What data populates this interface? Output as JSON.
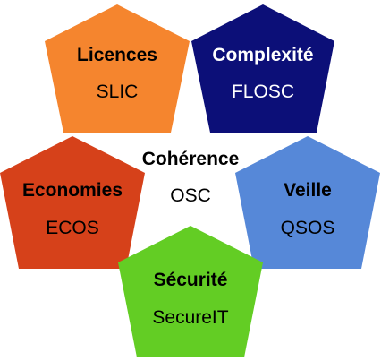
{
  "center": {
    "title": "Cohérence",
    "subtitle": "OSC"
  },
  "pentagons": [
    {
      "id": "licences",
      "title": "Licences",
      "subtitle": "SLIC",
      "fill": "#f5852e",
      "text_color": "#000000"
    },
    {
      "id": "complexite",
      "title": "Complexité",
      "subtitle": "FLOSC",
      "fill": "#0c0f78",
      "text_color": "#ffffff"
    },
    {
      "id": "economies",
      "title": "Economies",
      "subtitle": "ECOS",
      "fill": "#d6411a",
      "text_color": "#000000"
    },
    {
      "id": "veille",
      "title": "Veille",
      "subtitle": "QSOS",
      "fill": "#5688d8",
      "text_color": "#000000"
    },
    {
      "id": "securite",
      "title": "Sécurité",
      "subtitle": "SecureIT",
      "fill": "#63cd24",
      "text_color": "#000000"
    }
  ]
}
